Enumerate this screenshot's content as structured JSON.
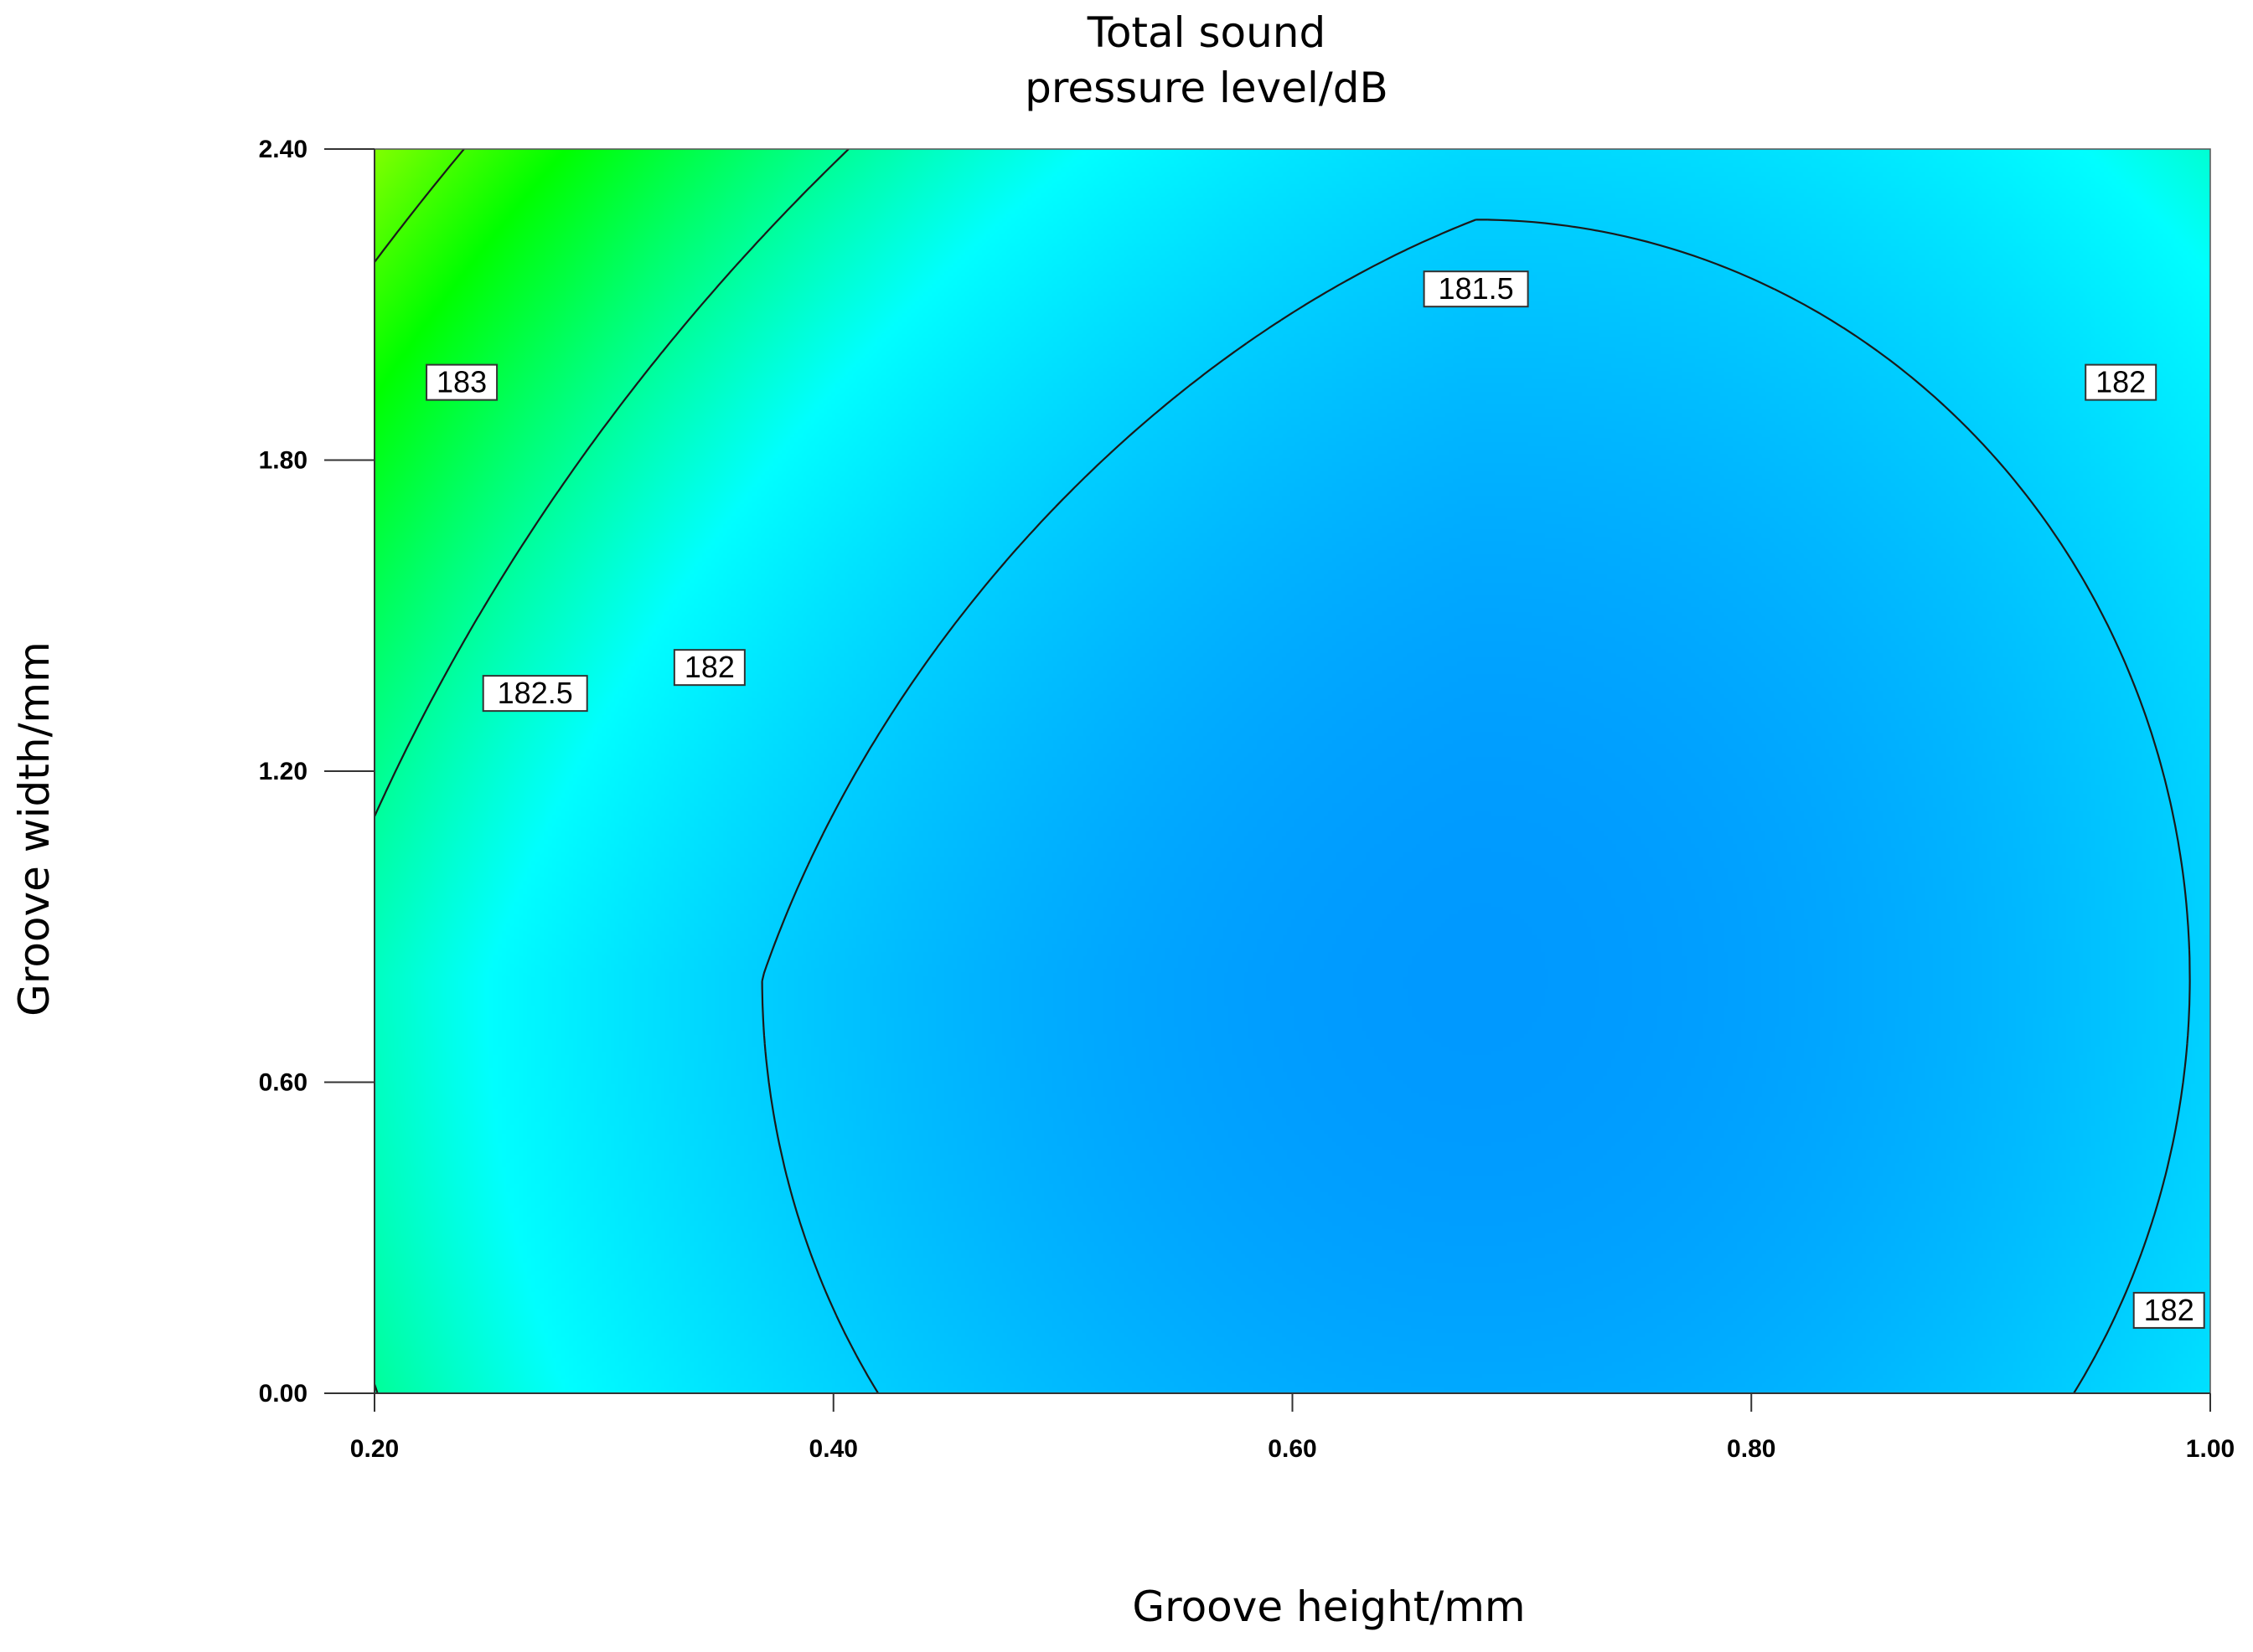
{
  "chart_data": {
    "type": "contour",
    "title": [
      "Total sound",
      "pressure level/dB"
    ],
    "xlabel": "Groove height/mm",
    "ylabel": "Groove width/mm",
    "xlim": [
      0.2,
      1.0
    ],
    "ylim": [
      0.0,
      2.4
    ],
    "x_ticks": [
      "0.20",
      "0.40",
      "0.60",
      "0.80",
      "1.00"
    ],
    "y_ticks": [
      "0.00",
      "0.60",
      "1.20",
      "1.80",
      "2.40"
    ],
    "z_levels": [
      181.5,
      182,
      182.5,
      183
    ],
    "contour_labels": [
      {
        "text": "181.5",
        "x": 0.68,
        "y": 2.13
      },
      {
        "text": "182",
        "x": 0.346,
        "y": 1.4
      },
      {
        "text": "182",
        "x": 0.961,
        "y": 1.95
      },
      {
        "text": "182",
        "x": 0.982,
        "y": 0.16
      },
      {
        "text": "182.5",
        "x": 0.27,
        "y": 1.35
      },
      {
        "text": "183",
        "x": 0.238,
        "y": 1.95
      }
    ],
    "minimum_region": {
      "x": 0.68,
      "y": 0.8
    },
    "colormap": [
      "#0099ff",
      "#00ffff",
      "#00ff00",
      "#ffff00",
      "#ff6600"
    ],
    "grid": false
  }
}
